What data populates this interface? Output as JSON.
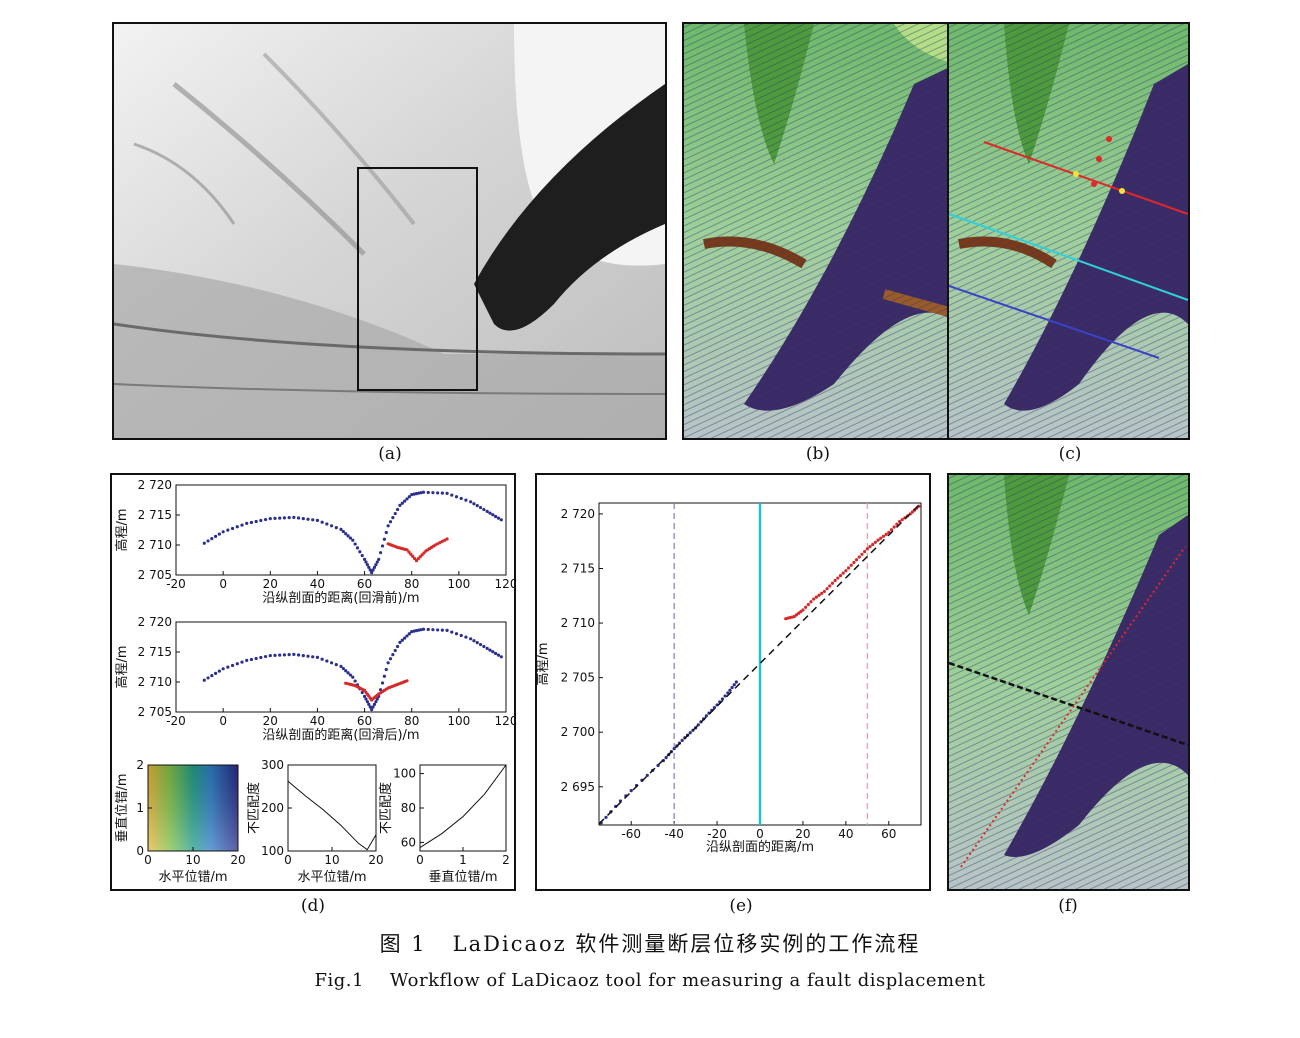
{
  "panels": {
    "a": {
      "label": "(a)"
    },
    "b": {
      "label": "(b)"
    },
    "c": {
      "label": "(c)"
    },
    "d": {
      "label": "(d)"
    },
    "e": {
      "label": "(e)"
    },
    "f": {
      "label": "(f)"
    }
  },
  "caption": {
    "zh_num": "图 1",
    "zh_text": "LaDicaoz 软件测量断层位移实例的工作流程",
    "en_num": "Fig.1",
    "en_text": "Workflow of LaDicaoz tool for measuring a fault displacement"
  },
  "chart_data": [
    {
      "id": "d-top",
      "type": "scatter",
      "ylabel": "高程/m",
      "xlabel": "沿纵剖面的距离(回滑前)/m",
      "xlim": [
        -20,
        120
      ],
      "ylim": [
        2705,
        2720
      ],
      "xticks": [
        "-20",
        "0",
        "20",
        "40",
        "60",
        "80",
        "100",
        "120"
      ],
      "yticks": [
        "2 705",
        "2 710",
        "2 715",
        "2 720"
      ],
      "series": [
        {
          "color": "#2b2f8f",
          "x": [
            -8,
            0,
            10,
            20,
            30,
            40,
            50,
            55,
            60,
            63,
            66,
            70,
            75,
            80,
            85,
            95,
            105,
            112,
            118
          ],
          "y": [
            2710.3,
            2712.2,
            2713.6,
            2714.4,
            2714.6,
            2714.1,
            2712.6,
            2710.8,
            2707.6,
            2705.4,
            2707.6,
            2713.2,
            2716.6,
            2718.4,
            2718.8,
            2718.6,
            2717.2,
            2715.6,
            2714.2
          ]
        },
        {
          "color": "#d42a2a",
          "x": [
            70,
            74,
            78,
            82,
            86,
            90,
            95
          ],
          "y": [
            2710.2,
            2709.6,
            2709.2,
            2707.4,
            2709.0,
            2710.0,
            2711.0
          ]
        }
      ]
    },
    {
      "id": "d-mid",
      "type": "scatter",
      "ylabel": "高程/m",
      "xlabel": "沿纵剖面的距离(回滑后)/m",
      "xlim": [
        -20,
        120
      ],
      "ylim": [
        2705,
        2720
      ],
      "xticks": [
        "-20",
        "0",
        "20",
        "40",
        "60",
        "80",
        "100",
        "120"
      ],
      "yticks": [
        "2 705",
        "2 710",
        "2 715",
        "2 720"
      ],
      "series": [
        {
          "color": "#2b2f8f",
          "x": [
            -8,
            0,
            10,
            20,
            30,
            40,
            50,
            55,
            60,
            63,
            66,
            70,
            75,
            80,
            85,
            95,
            105,
            112,
            118
          ],
          "y": [
            2710.3,
            2712.2,
            2713.6,
            2714.4,
            2714.6,
            2714.1,
            2712.6,
            2710.8,
            2707.6,
            2705.4,
            2707.6,
            2713.2,
            2716.6,
            2718.4,
            2718.8,
            2718.6,
            2717.2,
            2715.6,
            2714.2
          ]
        },
        {
          "color": "#d42a2a",
          "x": [
            52,
            56,
            60,
            63,
            66,
            70,
            74,
            78
          ],
          "y": [
            2709.8,
            2709.4,
            2708.6,
            2707.0,
            2708.0,
            2709.0,
            2709.6,
            2710.2
          ]
        }
      ]
    },
    {
      "id": "d-heatmap",
      "type": "heatmap",
      "xlabel": "水平位错/m",
      "ylabel": "垂直位错/m",
      "xlim": [
        0,
        20
      ],
      "ylim": [
        0,
        2
      ],
      "xticks": [
        "0",
        "10",
        "20"
      ],
      "yticks": [
        "0",
        "1",
        "2"
      ]
    },
    {
      "id": "d-mismatch-h",
      "type": "line",
      "xlabel": "水平位错/m",
      "ylabel": "不匹配度",
      "xlim": [
        0,
        20
      ],
      "ylim": [
        100,
        300
      ],
      "xticks": [
        "0",
        "10",
        "20"
      ],
      "yticks": [
        "100",
        "200",
        "300"
      ],
      "x": [
        0,
        4,
        8,
        12,
        16,
        18,
        20
      ],
      "y": [
        262,
        228,
        196,
        160,
        118,
        103,
        138
      ]
    },
    {
      "id": "d-mismatch-v",
      "type": "line",
      "xlabel": "垂直位错/m",
      "ylabel": "不匹配度",
      "xlim": [
        0,
        2
      ],
      "ylim": [
        55,
        105
      ],
      "xticks": [
        "0",
        "1",
        "2"
      ],
      "yticks": [
        "60",
        "80",
        "100"
      ],
      "x": [
        0,
        0.5,
        1,
        1.5,
        2
      ],
      "y": [
        57,
        65,
        75,
        88,
        105
      ]
    },
    {
      "id": "e",
      "type": "scatter",
      "xlabel": "沿纵剖面的距离/m",
      "ylabel": "高程/m",
      "xlim": [
        -75,
        75
      ],
      "ylim": [
        2691.5,
        2721
      ],
      "xticks": [
        "-60",
        "-40",
        "-20",
        "0",
        "20",
        "40",
        "60"
      ],
      "yticks": [
        "2 695",
        "2 700",
        "2 705",
        "2 710",
        "2 715",
        "2 720"
      ],
      "fit_line": {
        "x": [
          -75,
          75
        ],
        "y": [
          2691.6,
          2721.0
        ]
      },
      "vlines": [
        {
          "x": -40,
          "color": "#7c7cc8"
        },
        {
          "x": 0,
          "color": "#1fc3cf"
        },
        {
          "x": 50,
          "color": "#e89aa0"
        }
      ],
      "series": [
        {
          "color": "#2b2f8f",
          "x": [
            -74,
            -65,
            -55,
            -45,
            -40,
            -35,
            -30,
            -25,
            -20,
            -15,
            -11
          ],
          "y": [
            2691.7,
            2693.7,
            2695.6,
            2697.4,
            2698.5,
            2699.5,
            2700.4,
            2701.5,
            2702.5,
            2703.6,
            2704.6
          ]
        },
        {
          "color": "#d42a2a",
          "x": [
            12,
            16,
            20,
            25,
            30,
            35,
            40,
            45,
            50,
            55,
            60,
            65,
            70,
            74
          ],
          "y": [
            2710.4,
            2710.6,
            2711.2,
            2712.2,
            2712.9,
            2713.9,
            2714.8,
            2715.8,
            2716.8,
            2717.6,
            2718.3,
            2719.3,
            2720.0,
            2720.7
          ]
        }
      ]
    }
  ]
}
